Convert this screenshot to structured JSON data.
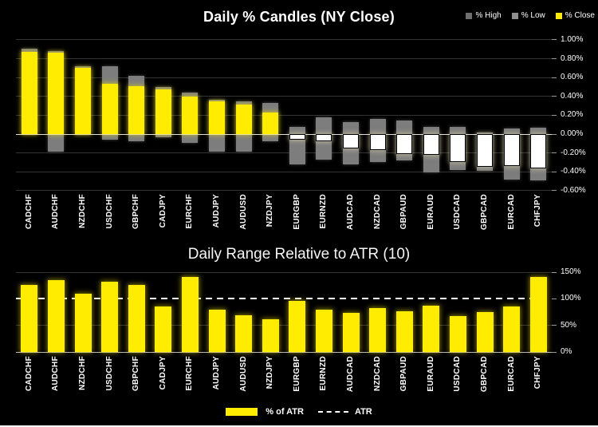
{
  "colors": {
    "background": "#000000",
    "candle_up": "#ffec00",
    "candle_down": "#ffffff",
    "wick": "#7d7d7d",
    "bar": "#ffec00",
    "grid": "#333333",
    "zero_line": "#e0e0e0",
    "baseline": "#b5b5b5",
    "tick": "#999999",
    "axis_text": "#ffffff",
    "atr_line": "#ffffff"
  },
  "top_chart": {
    "legend": [
      {
        "label": "% High",
        "color": "#6e6e6e"
      },
      {
        "label": "% Low",
        "color": "#8f8f8f"
      },
      {
        "label": "% Close",
        "color": "#ffec00"
      }
    ]
  },
  "bottom_chart": {
    "legend": [
      {
        "label": "% of ATR",
        "color": "#ffec00"
      },
      {
        "label": "ATR",
        "color": "#ffffff"
      }
    ]
  },
  "chart_data": [
    {
      "type": "bar",
      "subtype": "percent-candles",
      "title": "Daily % Candles (NY Close)",
      "categories": [
        "CADCHF",
        "AUDCHF",
        "NZDCHF",
        "USDCHF",
        "GBPCHF",
        "CADJPY",
        "EURCHF",
        "AUDJPY",
        "AUDUSD",
        "NZDJPY",
        "EURGBP",
        "EURNZD",
        "AUDCAD",
        "NZDCAD",
        "GBPAUD",
        "EURAUD",
        "USDCAD",
        "GBPCAD",
        "EURCAD",
        "CHFJPY"
      ],
      "series": [
        {
          "name": "% High",
          "values": [
            0.91,
            0.88,
            0.72,
            0.72,
            0.62,
            0.5,
            0.44,
            0.36,
            0.35,
            0.33,
            0.08,
            0.18,
            0.13,
            0.16,
            0.14,
            0.08,
            0.08,
            0.02,
            0.06,
            0.07
          ]
        },
        {
          "name": "% Low",
          "values": [
            0.0,
            -0.19,
            -0.01,
            -0.06,
            -0.08,
            -0.03,
            -0.09,
            -0.19,
            -0.19,
            -0.08,
            -0.32,
            -0.27,
            -0.32,
            -0.3,
            -0.28,
            -0.41,
            -0.38,
            -0.39,
            -0.48,
            -0.49
          ]
        },
        {
          "name": "% Close",
          "values": [
            0.87,
            0.86,
            0.7,
            0.53,
            0.51,
            0.47,
            0.4,
            0.35,
            0.31,
            0.23,
            -0.06,
            -0.08,
            -0.15,
            -0.17,
            -0.21,
            -0.22,
            -0.3,
            -0.35,
            -0.34,
            -0.36
          ]
        }
      ],
      "ylim": [
        -0.6,
        1.0
      ],
      "y_ticks": [
        {
          "label": "1.00%",
          "value": 1.0
        },
        {
          "label": "0.80%",
          "value": 0.8
        },
        {
          "label": "0.60%",
          "value": 0.6
        },
        {
          "label": "0.40%",
          "value": 0.4
        },
        {
          "label": "0.20%",
          "value": 0.2
        },
        {
          "label": "0.00%",
          "value": 0.0
        },
        {
          "label": "-0.20%",
          "value": -0.2
        },
        {
          "label": "-0.40%",
          "value": -0.4
        },
        {
          "label": "-0.60%",
          "value": -0.6
        }
      ],
      "grid": true,
      "legend_position": "top-right"
    },
    {
      "type": "bar",
      "title": "Daily Range Relative to ATR (10)",
      "categories": [
        "CADCHF",
        "AUDCHF",
        "NZDCHF",
        "USDCHF",
        "GBPCHF",
        "CADJPY",
        "EURCHF",
        "AUDJPY",
        "AUDUSD",
        "NZDJPY",
        "EURGBP",
        "EURNZD",
        "AUDCAD",
        "NZDCAD",
        "GBPAUD",
        "EURAUD",
        "USDCAD",
        "GBPCAD",
        "EURCAD",
        "CHFJPY"
      ],
      "series": [
        {
          "name": "% of ATR",
          "values": [
            126,
            136,
            110,
            133,
            126,
            86,
            141,
            80,
            69,
            62,
            96,
            79,
            73,
            82,
            77,
            87,
            68,
            75,
            86,
            142
          ]
        }
      ],
      "reference_line": {
        "name": "ATR",
        "value": 100,
        "style": "dashed"
      },
      "ylim": [
        0,
        150
      ],
      "y_ticks": [
        {
          "label": "150%",
          "value": 150
        },
        {
          "label": "100%",
          "value": 100
        },
        {
          "label": "50%",
          "value": 50
        },
        {
          "label": "0%",
          "value": 0
        }
      ],
      "grid": true,
      "legend_position": "bottom"
    }
  ]
}
